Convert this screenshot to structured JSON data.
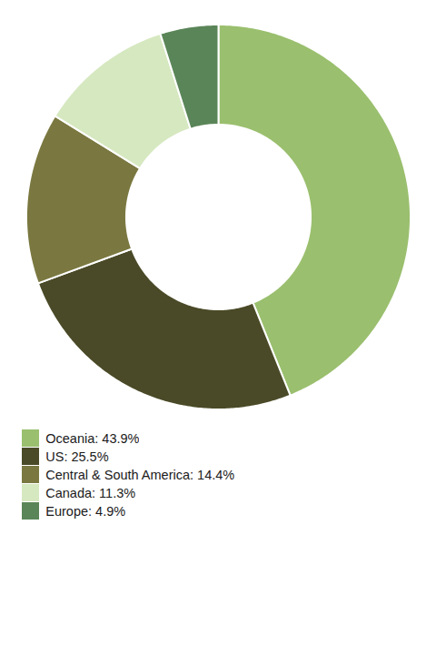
{
  "chart_data": {
    "type": "pie",
    "categories": [
      "Oceania: 43.9%",
      "US: 25.5%",
      "Central & South America: 14.4%",
      "Canada: 11.3%",
      "Europe: 4.9%"
    ],
    "values": [
      43.9,
      25.5,
      14.4,
      11.3,
      4.9
    ],
    "colors": [
      "#9abf6e",
      "#4a4a28",
      "#7a7840",
      "#d6e8c0",
      "#5a8558"
    ],
    "legend": "bottom"
  }
}
